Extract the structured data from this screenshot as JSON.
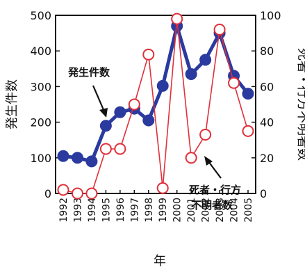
{
  "chart_data": {
    "type": "line",
    "xlabel": "年",
    "ylabel_left": "発生件数",
    "ylabel_right": "死者・行方不明者数",
    "ylim_left": [
      0,
      500
    ],
    "ylim_right": [
      0,
      100
    ],
    "yticks_left": [
      "0",
      "100",
      "200",
      "300",
      "400",
      "500"
    ],
    "yticks_right": [
      "0",
      "20",
      "40",
      "60",
      "80",
      "100"
    ],
    "categories": [
      "1992",
      "1993",
      "1994",
      "1995",
      "1996",
      "1997",
      "1998",
      "1999",
      "2000",
      "2001",
      "2002",
      "2003",
      "2004",
      "2005"
    ],
    "series": [
      {
        "name": "発生件数",
        "axis": "left",
        "color": "#2b3a9e",
        "marker": "filled-circle",
        "values": [
          105,
          100,
          90,
          190,
          228,
          238,
          205,
          302,
          470,
          335,
          375,
          450,
          330,
          280
        ]
      },
      {
        "name": "死者・行方不明者数",
        "axis": "right",
        "color": "#e0303a",
        "marker": "open-circle",
        "values": [
          2,
          0,
          0,
          25,
          25,
          50,
          78,
          3,
          98,
          20,
          33,
          92,
          62,
          35
        ]
      }
    ],
    "annotations": {
      "left_series_label": "発生件数",
      "right_series_label_line1": "死者・行方",
      "right_series_label_line2": "不明者数"
    },
    "grid": false
  }
}
